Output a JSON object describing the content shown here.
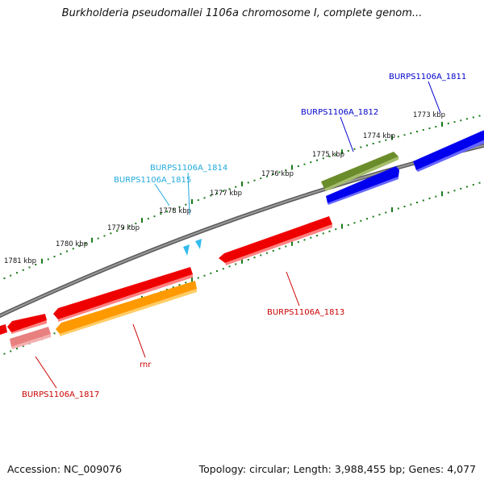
{
  "title": "Burkholderia pseudomallei 1106a chromosome I, complete genom...",
  "accession": "Accession: NC_009076",
  "summary": "Topology: circular; Length: 3,988,455 bp; Genes: 4,077",
  "colors": {
    "backbone": "#7f7f7f",
    "tick_major": "#1a7a1a",
    "label_blue": "#0000cc",
    "label_cyan": "#22aadd",
    "label_red": "#cc0000",
    "gene_red": "#ee0000",
    "gene_pink": "#e88080",
    "gene_orange": "#ff9900",
    "gene_olive": "#6b8c2a",
    "gene_blue": "#0000ee",
    "marker_cyan": "#33bbee"
  },
  "kbp_labels": [
    "1773 kbp",
    "1774 kbp",
    "1775 kbp",
    "1776 kbp",
    "1777 kbp",
    "1778 kbp",
    "1779 kbp",
    "1780 kbp",
    "1781 kbp"
  ],
  "genes": [
    {
      "label": "BURPS1106A_1811",
      "color_key": "label_blue"
    },
    {
      "label": "BURPS1106A_1812",
      "color_key": "label_blue"
    },
    {
      "label": "BURPS1106A_1814",
      "color_key": "label_cyan"
    },
    {
      "label": "BURPS1106A_1815",
      "color_key": "label_cyan"
    },
    {
      "label": "BURPS1106A_1813",
      "color_key": "label_red"
    },
    {
      "label": "rnr",
      "color_key": "label_red"
    },
    {
      "label": "BURPS1106A_1817",
      "color_key": "label_red"
    }
  ]
}
